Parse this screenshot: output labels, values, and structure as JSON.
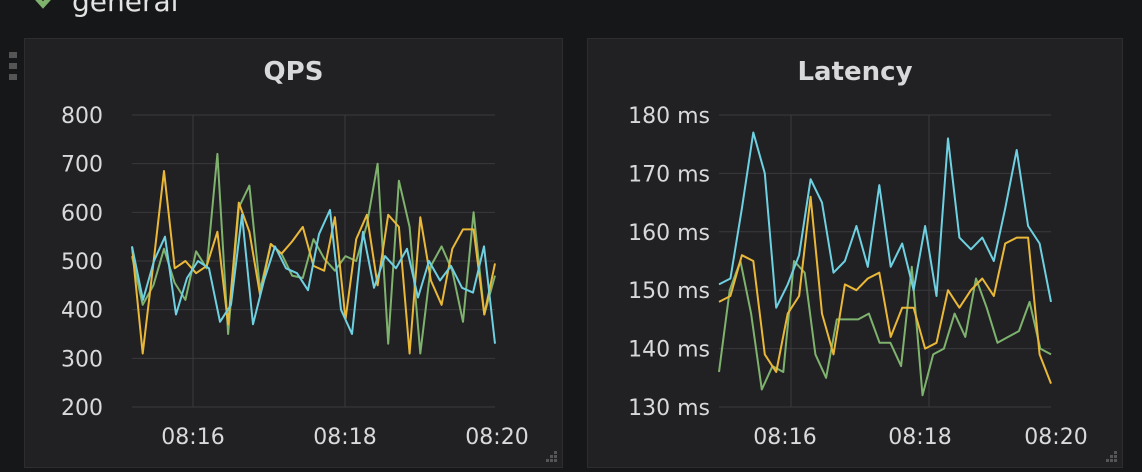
{
  "row": {
    "title": "general"
  },
  "chart_data": [
    {
      "type": "line",
      "title": "QPS",
      "ylim": [
        200,
        800
      ],
      "yticks": [
        "800",
        "700",
        "600",
        "500",
        "400",
        "300",
        "200"
      ],
      "xticks": [
        "08:16",
        "08:18",
        "08:20"
      ],
      "grid": true,
      "series": [
        {
          "color": "#7eb26d",
          "values": [
            510,
            410,
            450,
            525,
            455,
            420,
            520,
            485,
            720,
            350,
            610,
            655,
            440,
            535,
            515,
            470,
            465,
            545,
            505,
            480,
            510,
            500,
            575,
            700,
            330,
            665,
            570,
            310,
            490,
            530,
            480,
            375,
            600,
            390,
            470
          ]
        },
        {
          "color": "#eab839",
          "values": [
            530,
            310,
            495,
            685,
            485,
            500,
            475,
            490,
            560,
            370,
            620,
            560,
            430,
            535,
            515,
            540,
            570,
            490,
            480,
            590,
            380,
            545,
            595,
            450,
            595,
            570,
            310,
            590,
            460,
            410,
            525,
            565,
            565,
            390,
            495
          ]
        },
        {
          "color": "#6ed0e0",
          "values": [
            530,
            420,
            500,
            550,
            390,
            465,
            500,
            485,
            375,
            410,
            595,
            370,
            460,
            530,
            485,
            475,
            440,
            555,
            605,
            400,
            350,
            560,
            445,
            510,
            485,
            525,
            425,
            500,
            460,
            490,
            445,
            435,
            530,
            330
          ]
        }
      ]
    },
    {
      "type": "line",
      "title": "Latency",
      "ylim": [
        130,
        180
      ],
      "yticks": [
        "180 ms",
        "170 ms",
        "160 ms",
        "150 ms",
        "140 ms",
        "130 ms"
      ],
      "xticks": [
        "08:16",
        "08:18",
        "08:20"
      ],
      "grid": true,
      "series": [
        {
          "color": "#7eb26d",
          "values": [
            136,
            150,
            155,
            146,
            133,
            137,
            136,
            155,
            153,
            139,
            135,
            145,
            145,
            145,
            146,
            141,
            141,
            137,
            154,
            132,
            139,
            140,
            146,
            142,
            152,
            147,
            141,
            142,
            143,
            148,
            140,
            139
          ]
        },
        {
          "color": "#eab839",
          "values": [
            148,
            149,
            156,
            155,
            139,
            136,
            146,
            149,
            166,
            146,
            139,
            151,
            150,
            152,
            153,
            142,
            147,
            147,
            140,
            141,
            150,
            147,
            150,
            152,
            149,
            158,
            159,
            159,
            139,
            134
          ]
        },
        {
          "color": "#6ed0e0",
          "values": [
            151,
            152,
            164,
            177,
            170,
            147,
            151,
            156,
            169,
            165,
            153,
            155,
            161,
            154,
            168,
            154,
            158,
            150,
            161,
            149,
            176,
            159,
            157,
            159,
            155,
            164,
            174,
            161,
            158,
            148
          ]
        }
      ]
    }
  ]
}
